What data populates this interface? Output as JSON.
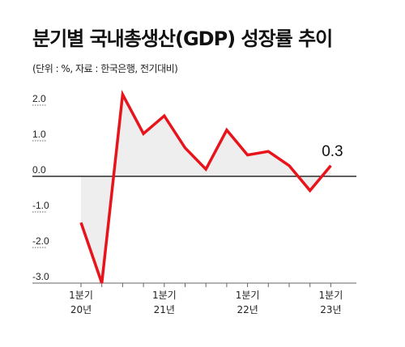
{
  "chart_data": {
    "type": "line",
    "title": "분기별 국내총생산(GDP) 성장률 추이",
    "subtitle": "(단위 : %, 자료 : 한국은행, 전기대비)",
    "x": [
      "2020Q1",
      "2020Q2",
      "2020Q3",
      "2020Q4",
      "2021Q1",
      "2021Q2",
      "2021Q3",
      "2021Q4",
      "2022Q1",
      "2022Q2",
      "2022Q3",
      "2022Q4",
      "2023Q1"
    ],
    "series": [
      {
        "values": [
          -1.3,
          -3.0,
          2.3,
          1.2,
          1.7,
          0.8,
          0.2,
          1.3,
          0.6,
          0.7,
          0.3,
          -0.4,
          0.3
        ]
      }
    ],
    "ylim": [
      -3.0,
      2.5
    ],
    "yticks": [
      "2.0",
      "1.0",
      "0.0",
      "-1.0",
      "-2.0",
      "-3.0"
    ],
    "ytick_values": [
      2.0,
      1.0,
      0.0,
      -1.0,
      -2.0,
      -3.0
    ],
    "xtick_labels": [
      {
        "index": 0,
        "line1": "1분기",
        "line2": "20년"
      },
      {
        "index": 4,
        "line1": "1분기",
        "line2": "21년"
      },
      {
        "index": 8,
        "line1": "1분기",
        "line2": "22년"
      },
      {
        "index": 12,
        "line1": "1분기",
        "line2": "23년"
      }
    ],
    "annotation": {
      "index": 12,
      "text": "0.3"
    },
    "colors": {
      "line": "#e8141b",
      "fill": "#eeeeee",
      "zero": "#000000",
      "axis": "#666666"
    },
    "grid": false
  }
}
